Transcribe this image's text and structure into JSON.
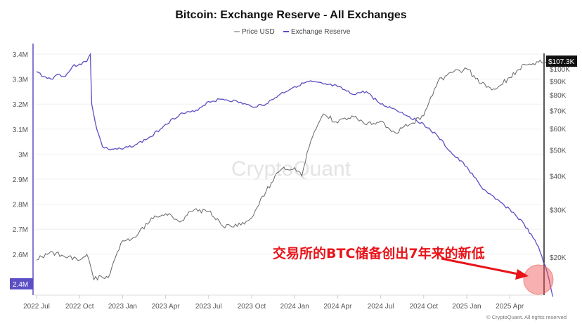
{
  "chart_data": {
    "type": "line",
    "title": "Bitcoin: Exchange Reserve - All Exchanges",
    "legend": [
      "Price USD",
      "Exchange Reserve"
    ],
    "legend_placement": "top-center",
    "watermark": "CryptoQuant",
    "copyright": "© CryptoQuant. All rights reserved",
    "x_ticks": [
      "2022 Jul",
      "2022 Oct",
      "2023 Jan",
      "2023 Apr",
      "2023 Jul",
      "2023 Oct",
      "2024 Jan",
      "2024 Apr",
      "2024 Jul",
      "2024 Oct",
      "2025 Jan",
      "2025 Apr"
    ],
    "x_unit": "months since 2022 Jul",
    "left_axis": {
      "ticks": [
        "3.4M",
        "3.3M",
        "3.2M",
        "3.1M",
        "3M",
        "2.9M",
        "2.8M",
        "2.7M",
        "2.6M"
      ],
      "tick_values": [
        3.4,
        3.3,
        3.2,
        3.1,
        3.0,
        2.9,
        2.8,
        2.7,
        2.6
      ],
      "ylim": [
        2.38,
        3.42
      ],
      "current_label": "2.4M"
    },
    "right_axis": {
      "scale": "log",
      "ticks": [
        "$100K",
        "$90K",
        "$80K",
        "$70K",
        "$60K",
        "$50K",
        "$40K",
        "$30K",
        "$20K"
      ],
      "tick_values": [
        100,
        90,
        80,
        70,
        60,
        50,
        40,
        30,
        20
      ],
      "current_label": "$107.3K"
    },
    "series": [
      {
        "name": "Exchange Reserve",
        "color": "#5b4fc4",
        "unit": "M BTC",
        "x": [
          0,
          0.5,
          1,
          1.5,
          2,
          2.5,
          3,
          3.5,
          3.75,
          3.85,
          4.2,
          4.6,
          5,
          6,
          7,
          8,
          9,
          10,
          11,
          12,
          13,
          14,
          15,
          16,
          17,
          18,
          19,
          20,
          21,
          22,
          23,
          24,
          25,
          26,
          27,
          28,
          29,
          30,
          31,
          32,
          33,
          34,
          35,
          35.6,
          36
        ],
        "values": [
          3.33,
          3.31,
          3.3,
          3.32,
          3.31,
          3.35,
          3.36,
          3.37,
          3.4,
          3.2,
          3.1,
          3.03,
          3.02,
          3.02,
          3.04,
          3.07,
          3.12,
          3.16,
          3.17,
          3.21,
          3.22,
          3.21,
          3.19,
          3.2,
          3.24,
          3.27,
          3.29,
          3.28,
          3.27,
          3.24,
          3.25,
          3.2,
          3.18,
          3.15,
          3.12,
          3.07,
          3.0,
          2.95,
          2.87,
          2.82,
          2.78,
          2.72,
          2.63,
          2.53,
          2.43
        ]
      },
      {
        "name": "Price USD",
        "color": "#666666",
        "unit": "K USD",
        "x": [
          0,
          1,
          2,
          3,
          3.5,
          4,
          4.5,
          5,
          6,
          7,
          8,
          9,
          10,
          11,
          12,
          13,
          14,
          15,
          16,
          17,
          18,
          18.5,
          19,
          20,
          21,
          22,
          23,
          24,
          25,
          26,
          27,
          28,
          29,
          30,
          31,
          32,
          33,
          34,
          35,
          36
        ],
        "values": [
          19.5,
          21,
          20,
          19.5,
          20.5,
          16.5,
          17,
          16.8,
          23,
          24,
          28,
          29,
          27,
          30,
          29.5,
          26,
          26,
          28,
          35,
          42,
          43,
          40,
          51,
          68,
          63,
          67,
          62,
          64,
          58,
          62,
          67,
          90,
          97,
          100,
          88,
          84,
          93,
          104,
          106,
          107
        ]
      }
    ]
  },
  "annotation": {
    "text": "交易所的BTC储备创出7年来的新低",
    "color": "#e8141a"
  }
}
